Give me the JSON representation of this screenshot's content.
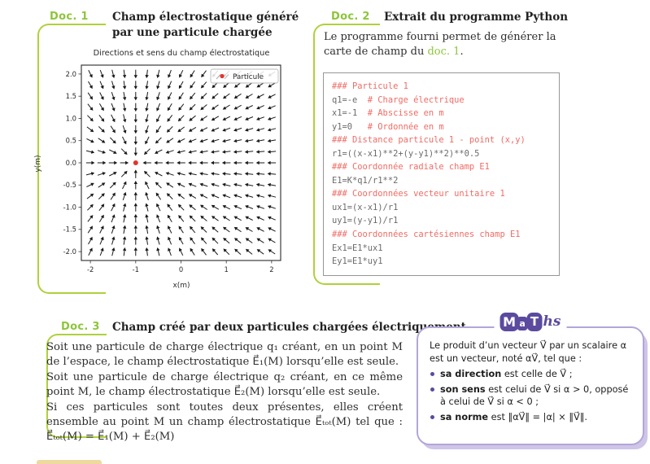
{
  "page": {
    "background": "#ffffff",
    "accent_green": "#8ec53a",
    "accent_purple": "#5b4a9e"
  },
  "doc1": {
    "label": "Doc. 1",
    "title_line1": "Champ électrostatique généré",
    "title_line2": "par une particule chargée"
  },
  "chart_data": {
    "type": "quiver",
    "title": "Directions et sens du champ électrostatique",
    "xlabel": "x(m)",
    "ylabel": "y(m)",
    "xlim": [
      -2.2,
      2.2
    ],
    "ylim": [
      -2.2,
      2.2
    ],
    "xticks": [
      "-2",
      "-1",
      "0",
      "1",
      "2"
    ],
    "xtick_values": [
      -2,
      -1,
      0,
      1,
      2
    ],
    "yticks": [
      "-2.0",
      "-1.5",
      "-1.0",
      "-0.5",
      "0.0",
      "0.5",
      "1.0",
      "1.5",
      "2.0"
    ],
    "ytick_values": [
      -2,
      -1.5,
      -1,
      -0.5,
      0,
      0.5,
      1,
      1.5,
      2
    ],
    "grid": {
      "min": -2,
      "max": 2,
      "n": 17
    },
    "particle": {
      "x": -1,
      "y": 0,
      "color": "#e0362c"
    },
    "arrow_color": "#1a1a1a",
    "field_direction": "unit vectors pointing toward the particle (negative charge q1=-e at x=-1, y=0)",
    "legend": {
      "label": "Particule"
    }
  },
  "doc2": {
    "label": "Doc. 2",
    "title": "Extrait du programme Python",
    "intro_before": "Le programme fourni permet de générer la carte de champ du ",
    "intro_link": "doc. 1",
    "intro_after": "."
  },
  "python": {
    "lines": [
      {
        "comment": "### Particule 1"
      },
      {
        "code": "q1=-e",
        "comment": "  # Charge électrique"
      },
      {
        "code": "x1=-1",
        "comment": "  # Abscisse en m"
      },
      {
        "code": "y1=0",
        "comment": "   # Ordonnée en m"
      },
      {
        "comment": "### Distance particule 1 - point (x,y)"
      },
      {
        "code": "r1=((x-x1)**2+(y-y1)**2)**0.5"
      },
      {
        "comment": "### Coordonnée radiale champ E1"
      },
      {
        "code": "E1=K*q1/r1**2"
      },
      {
        "comment": "### Coordonnées vecteur unitaire 1"
      },
      {
        "code": "ux1=(x-x1)/r1"
      },
      {
        "code": "uy1=(y-y1)/r1"
      },
      {
        "comment": "### Coordonnées cartésiennes champ E1"
      },
      {
        "code": "Ex1=E1*ux1"
      },
      {
        "code": "Ey1=E1*uy1"
      }
    ]
  },
  "doc3": {
    "label": "Doc. 3",
    "title": "Champ créé par deux particules chargées électriquement",
    "sentences": [
      "Soit une particule de charge électrique q₁ créant, en un point M de l’espace, le champ électrostatique E⃗₁(M) lorsqu’elle est seule.",
      "Soit une particule de charge électrique q₂ créant, en ce même point M, le champ électrostatique E⃗₂(M) lorsqu’elle est seule.",
      "Si ces particules sont toutes deux présentes, elles créent ensemble au point M un champ électrostatique E⃗ₜₒₜ(M) tel que : E⃗ₜₒₜ(M) = E⃗₁(M) + E⃗₂(M)"
    ]
  },
  "maths": {
    "logo": {
      "m": "M",
      "a": "a",
      "t": "T",
      "hs": "hs"
    },
    "intro": "Le produit d’un vecteur V⃗ par un scalaire α est un vecteur, noté αV⃗, tel que :",
    "bullets": [
      {
        "bold": "sa direction",
        "rest": " est celle de V⃗ ;"
      },
      {
        "bold": "son sens",
        "rest": " est celui de V⃗ si α > 0, opposé à celui de V⃗ si α < 0 ;"
      },
      {
        "bold": "sa norme",
        "rest": " est ‖αV⃗‖ = |α| × ‖V⃗‖."
      }
    ]
  }
}
